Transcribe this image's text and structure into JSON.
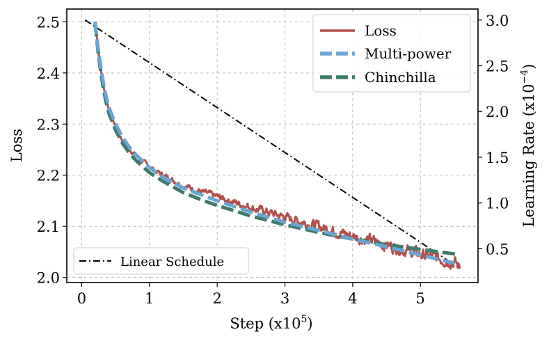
{
  "chart_data": {
    "type": "line",
    "xlabel": "Step (x10",
    "xlabel_exp": "5",
    "xlabel_close": ")",
    "ylabel": "Loss",
    "y2label": "Learning Rate (x10",
    "y2label_exp": "−4",
    "y2label_close": ")",
    "xlim": [
      -0.22,
      5.85
    ],
    "ylim": [
      1.99,
      2.525
    ],
    "y2lim": [
      0.13,
      3.12
    ],
    "xticks": [
      "0",
      "1",
      "2",
      "3",
      "4",
      "5"
    ],
    "yticks": [
      "2.0",
      "2.1",
      "2.2",
      "2.3",
      "2.4",
      "2.5"
    ],
    "y2ticks": [
      "0.5",
      "1.0",
      "1.5",
      "2.0",
      "2.5",
      "3.0"
    ],
    "grid": true,
    "series": [
      {
        "name": "Loss",
        "color": "#b3504b",
        "axis": "left",
        "style": "solid",
        "x": [
          0.2,
          0.22,
          0.25,
          0.3,
          0.35,
          0.4,
          0.5,
          0.6,
          0.7,
          0.8,
          1.0,
          1.2,
          1.5,
          1.8,
          2.0,
          2.5,
          3.0,
          3.5,
          4.0,
          4.5,
          5.0,
          5.5,
          5.58
        ],
        "y": [
          2.5,
          2.478,
          2.44,
          2.392,
          2.355,
          2.33,
          2.295,
          2.268,
          2.252,
          2.238,
          2.216,
          2.2,
          2.18,
          2.166,
          2.158,
          2.137,
          2.118,
          2.1,
          2.081,
          2.064,
          2.045,
          2.03,
          2.02
        ]
      },
      {
        "name": "Multi-power",
        "color": "#6aa5d6",
        "axis": "left",
        "style": "dashed",
        "x": [
          0.2,
          0.22,
          0.25,
          0.3,
          0.35,
          0.4,
          0.5,
          0.6,
          0.7,
          0.8,
          1.0,
          1.2,
          1.5,
          1.8,
          2.0,
          2.5,
          3.0,
          3.5,
          4.0,
          4.5,
          5.0,
          5.5,
          5.58
        ],
        "y": [
          2.5,
          2.472,
          2.44,
          2.395,
          2.36,
          2.333,
          2.3,
          2.275,
          2.255,
          2.24,
          2.215,
          2.196,
          2.175,
          2.16,
          2.15,
          2.128,
          2.108,
          2.092,
          2.075,
          2.06,
          2.044,
          2.028,
          2.025
        ]
      },
      {
        "name": "Chinchilla",
        "color": "#3f7a6d",
        "axis": "left",
        "style": "dashed",
        "x": [
          0.2,
          0.22,
          0.25,
          0.3,
          0.35,
          0.4,
          0.5,
          0.6,
          0.7,
          0.8,
          1.0,
          1.2,
          1.5,
          1.8,
          2.0,
          2.5,
          3.0,
          3.5,
          4.0,
          4.5,
          5.0,
          5.5,
          5.58
        ],
        "y": [
          2.496,
          2.468,
          2.432,
          2.385,
          2.348,
          2.322,
          2.288,
          2.263,
          2.244,
          2.229,
          2.205,
          2.188,
          2.166,
          2.15,
          2.141,
          2.12,
          2.103,
          2.088,
          2.075,
          2.064,
          2.055,
          2.046,
          2.045
        ]
      },
      {
        "name": "Linear Schedule",
        "color": "#000000",
        "axis": "right",
        "style": "dashdot",
        "x": [
          0.05,
          5.55
        ],
        "y": [
          3.0,
          0.3
        ]
      }
    ],
    "legend_main": [
      "Loss",
      "Multi-power",
      "Chinchilla"
    ],
    "legend_secondary": [
      "Linear Schedule"
    ]
  }
}
